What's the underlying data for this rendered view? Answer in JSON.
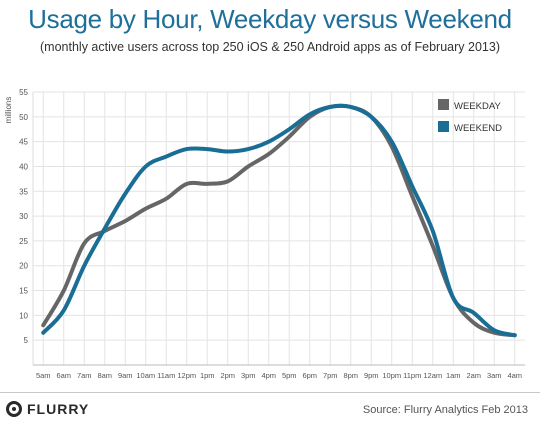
{
  "chart_data": {
    "type": "line",
    "title": "Usage by Hour, Weekday versus Weekend",
    "subtitle": "(monthly active users across top 250 iOS & 250 Android apps as of February 2013)",
    "xlabel": "",
    "ylabel": "millions",
    "ylim": [
      0,
      55
    ],
    "yticks": [
      5,
      10,
      15,
      20,
      25,
      30,
      35,
      40,
      45,
      50,
      55
    ],
    "grid": true,
    "legend_position": "top-right",
    "categories": [
      "5am",
      "6am",
      "7am",
      "8am",
      "9am",
      "10am",
      "11am",
      "12pm",
      "1pm",
      "2pm",
      "3pm",
      "4pm",
      "5pm",
      "6pm",
      "7pm",
      "8pm",
      "9pm",
      "10pm",
      "11pm",
      "12am",
      "1am",
      "2am",
      "3am",
      "4am"
    ],
    "series": [
      {
        "name": "WEEKDAY",
        "color": "#666666",
        "values": [
          8,
          15,
          24.5,
          27,
          29,
          31.5,
          33.5,
          36.5,
          36.5,
          37,
          40,
          42.5,
          46,
          50,
          52,
          52,
          50,
          44,
          34,
          24,
          13.5,
          8.5,
          6.5,
          6
        ]
      },
      {
        "name": "WEEKEND",
        "color": "#1a6e96",
        "values": [
          6.5,
          11,
          20,
          27.5,
          34.5,
          40,
          42,
          43.5,
          43.5,
          43,
          43.5,
          45,
          47.5,
          50.5,
          52,
          52,
          50,
          45,
          36,
          27,
          13.5,
          10.5,
          7,
          6
        ]
      }
    ]
  },
  "footer": {
    "logo_text": "FLURRY",
    "source": "Source: Flurry Analytics Feb 2013"
  },
  "colors": {
    "title": "#1e6f9a",
    "grid": "#e3e3e3"
  }
}
